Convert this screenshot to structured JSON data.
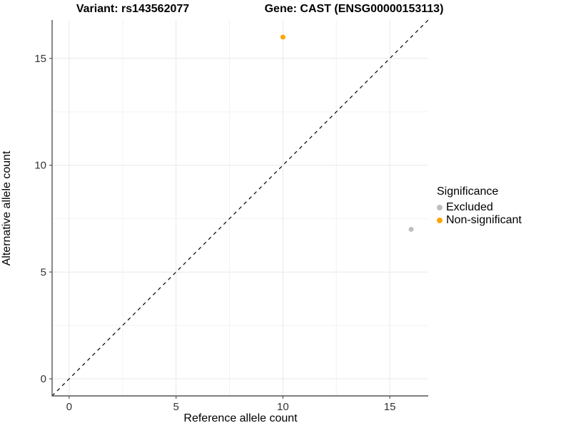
{
  "titles": {
    "variant": "Variant: rs143562077",
    "gene": "Gene: CAST (ENSG00000153113)"
  },
  "chart_data": {
    "type": "scatter",
    "title_left": "Variant: rs143562077",
    "title_right": "Gene: CAST (ENSG00000153113)",
    "xlabel": "Reference allele count",
    "ylabel": "Alternative allele count",
    "xlim": [
      -0.8,
      16.8
    ],
    "ylim": [
      -0.8,
      16.8
    ],
    "x_ticks": [
      0,
      5,
      10,
      15
    ],
    "y_ticks": [
      0,
      5,
      10,
      15
    ],
    "x_minor_ticks": [
      2.5,
      7.5,
      12.5
    ],
    "y_minor_ticks": [
      2.5,
      7.5,
      12.5
    ],
    "grid": true,
    "identity_line": {
      "style": "dashed",
      "color": "#000000",
      "from": [
        -0.8,
        -0.8
      ],
      "to": [
        16.8,
        16.8
      ]
    },
    "series": [
      {
        "name": "Excluded",
        "color": "#BEBEBE",
        "points": [
          {
            "x": 16,
            "y": 7
          }
        ]
      },
      {
        "name": "Non-significant",
        "color": "#FFA500",
        "points": [
          {
            "x": 10,
            "y": 16
          }
        ]
      }
    ],
    "legend": {
      "title": "Significance",
      "position": "right",
      "entries": [
        {
          "label": "Excluded",
          "color": "#BEBEBE"
        },
        {
          "label": "Non-significant",
          "color": "#FFA500"
        }
      ]
    },
    "style": {
      "major_grid_color": "#e8e8e8",
      "minor_grid_color": "#f3f3f3",
      "axis_line_color": "#555555",
      "tick_mark_color": "#555555",
      "tick_label_color": "#333333",
      "point_radius": 3.5
    }
  }
}
